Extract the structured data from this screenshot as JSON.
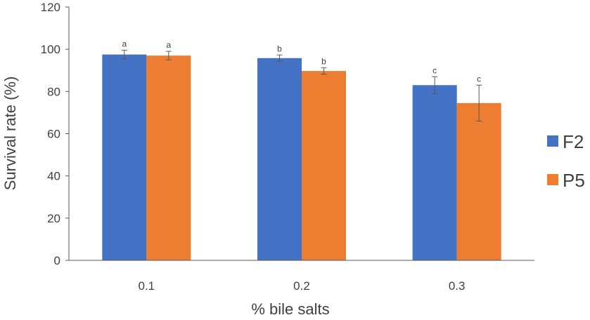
{
  "chart_data": {
    "type": "bar",
    "xlabel": "% bile salts",
    "ylabel": "Survival rate (%)",
    "ylim": [
      0,
      120
    ],
    "yticks": [
      0,
      20,
      40,
      60,
      80,
      100,
      120
    ],
    "grid": false,
    "legend_position": "right",
    "categories": [
      "0.1",
      "0.2",
      "0.3"
    ],
    "series": [
      {
        "name": "F2",
        "color": "#4472C4",
        "values": [
          97.5,
          95.8,
          83.0
        ],
        "errors": [
          2.0,
          1.5,
          4.0
        ],
        "labels": [
          "a",
          "b",
          "c"
        ]
      },
      {
        "name": "P5",
        "color": "#ED7D31",
        "values": [
          97.0,
          89.7,
          74.5
        ],
        "errors": [
          2.0,
          1.5,
          8.5
        ],
        "labels": [
          "a",
          "b",
          "c"
        ]
      }
    ]
  }
}
